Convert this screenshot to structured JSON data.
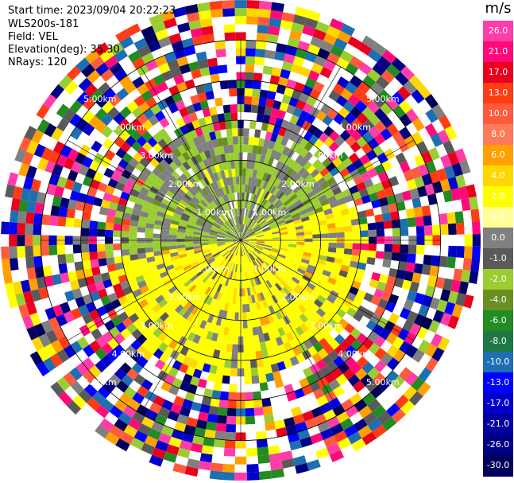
{
  "info": {
    "start_time": "Start time: 2023/09/04 20:22:23",
    "device": "WLS200s-181",
    "field": "Field: VEL",
    "elevation": "Elevation(deg): 35.30",
    "nrays": "NRays: 120"
  },
  "colorbar": {
    "unit": "m/s",
    "ticks": [
      "26.0",
      "21.0",
      "17.0",
      "13.0",
      "10.0",
      "8.0",
      "6.0",
      "4.0",
      "2.0",
      "1.0",
      "0.0",
      "-1.0",
      "-2.0",
      "-4.0",
      "-6.0",
      "-8.0",
      "-10.0",
      "-13.0",
      "-17.0",
      "-21.0",
      "-26.0",
      "-30.0"
    ],
    "colors": [
      "#ff3ca8",
      "#ff0a78",
      "#e8001e",
      "#ff3c14",
      "#ff5a3c",
      "#ff7a5a",
      "#ffa000",
      "#ffd700",
      "#ffff00",
      "#ffff96",
      "#808080",
      "#5a5a5a",
      "#9acd32",
      "#6b8e23",
      "#228b22",
      "#1e7846",
      "#1e6eb4",
      "#0000ff",
      "#0000c8",
      "#0000a0",
      "#000080",
      "#00005a"
    ]
  },
  "range_rings": {
    "labels": [
      "1.00km",
      "2.00km",
      "3.00km",
      "4.00km",
      "5.00km"
    ]
  },
  "scan": {
    "nrays": 120,
    "ngates": 30,
    "max_range_km": 6
  }
}
